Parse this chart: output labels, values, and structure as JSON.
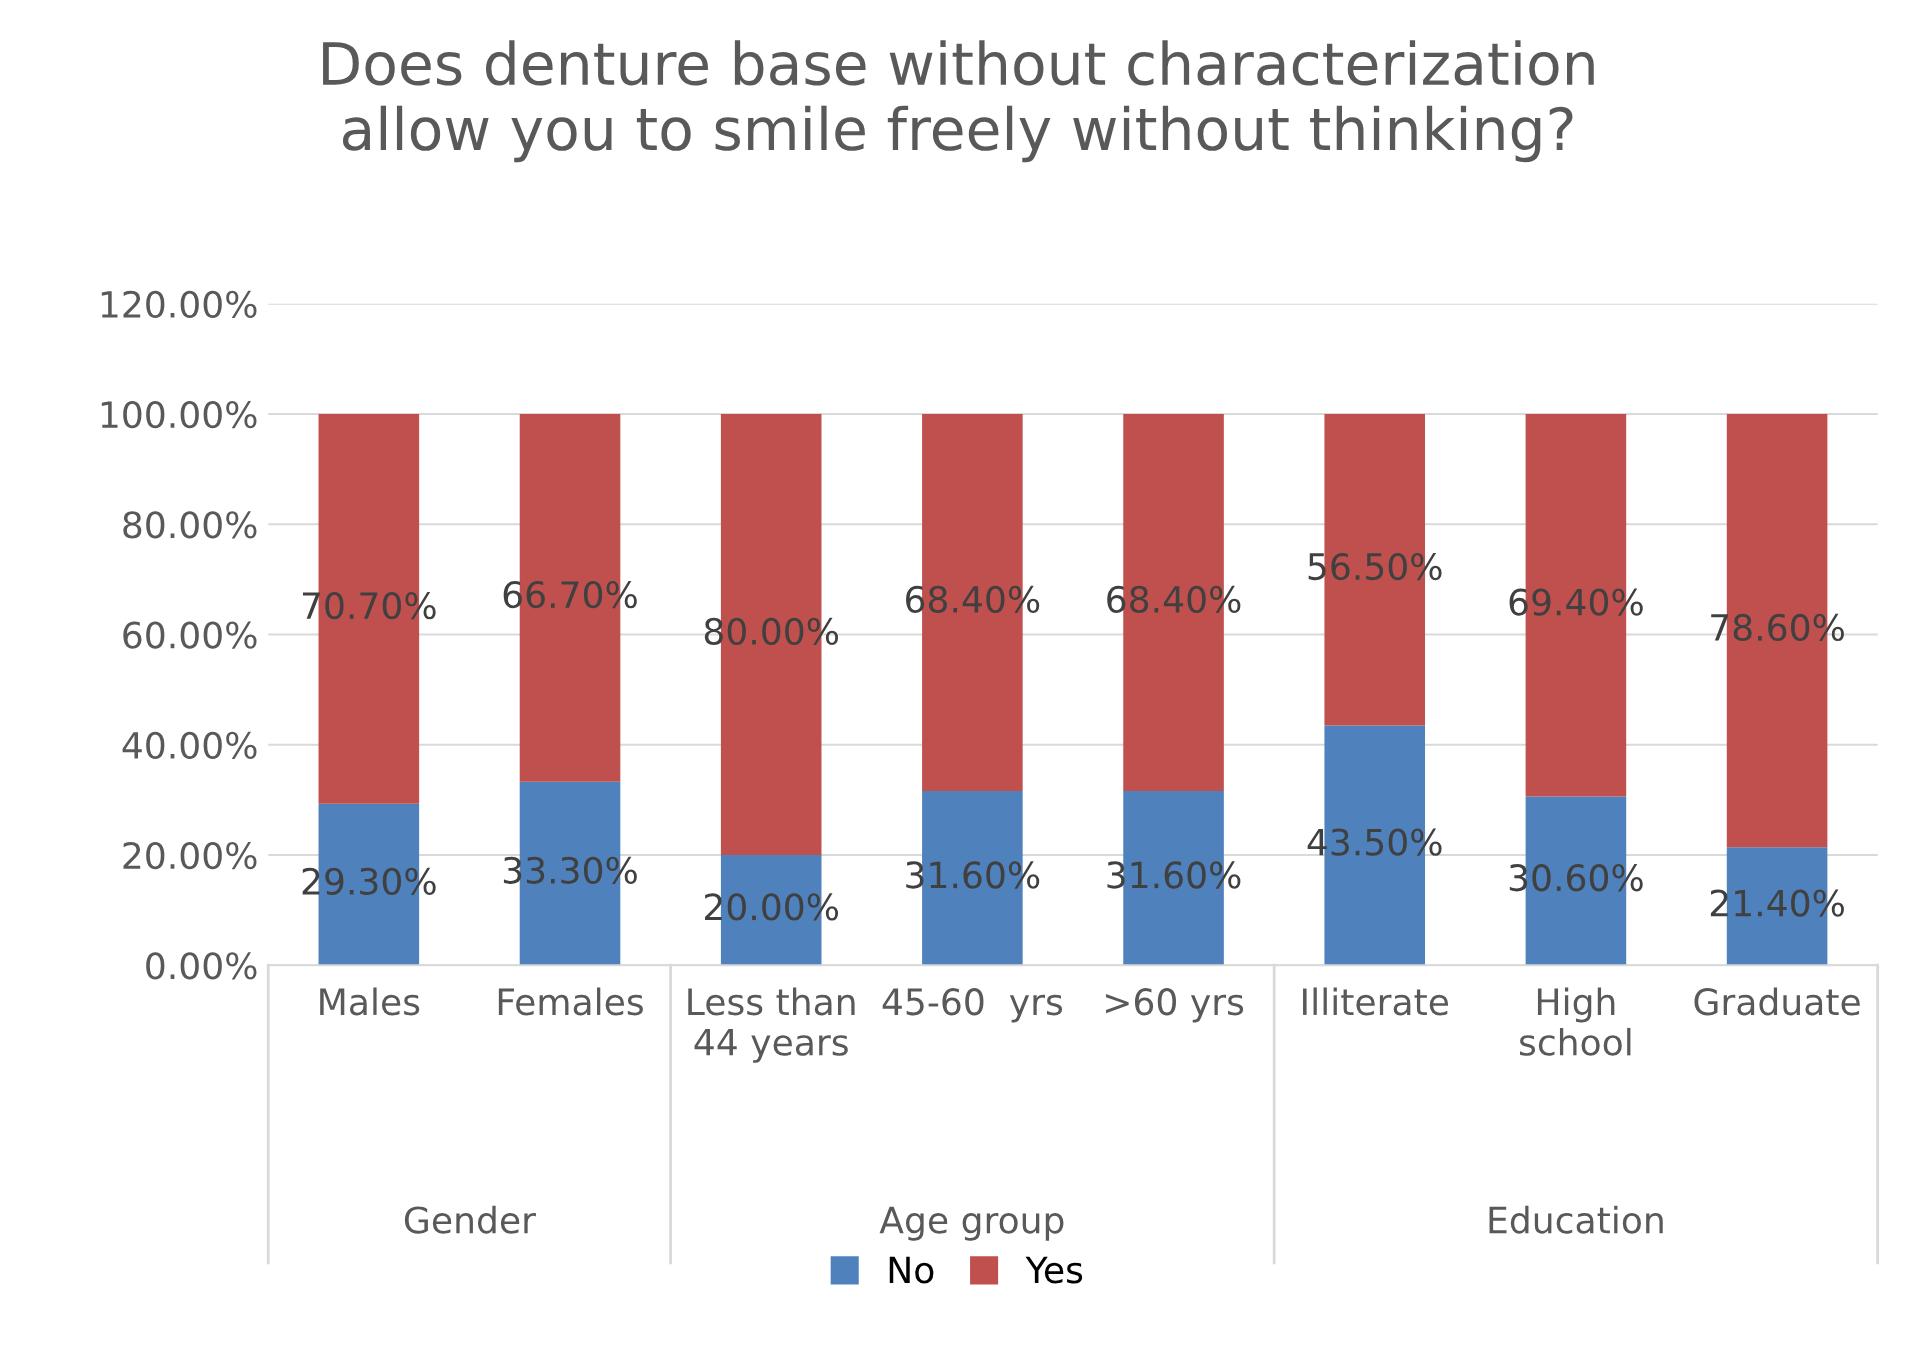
{
  "chart_data": {
    "type": "bar",
    "stacked": true,
    "title": "Does denture base without characterization\nallow you to smile freely without thinking?",
    "categories": [
      "Males",
      "Females",
      "Less than\n44 years",
      "45-60  yrs",
      ">60 yrs",
      "Illiterate",
      "High\nschool",
      "Graduate"
    ],
    "series": [
      {
        "name": "No",
        "color": "#4f81bd",
        "values": [
          29.3,
          33.3,
          20.0,
          31.6,
          31.6,
          43.5,
          30.6,
          21.4
        ],
        "value_labels": [
          "29.30%",
          "33.30%",
          "20.00%",
          "31.60%",
          "31.60%",
          "43.50%",
          "30.60%",
          "21.40%"
        ]
      },
      {
        "name": "Yes",
        "color": "#c0504d",
        "values": [
          70.7,
          66.7,
          80.0,
          68.4,
          68.4,
          56.5,
          69.4,
          78.6
        ],
        "value_labels": [
          "70.70%",
          "66.70%",
          "80.00%",
          "68.40%",
          "68.40%",
          "56.50%",
          "69.40%",
          "78.60%"
        ]
      }
    ],
    "annotations": [
      "Gender",
      "Age group",
      "Education"
    ],
    "ylim": [
      0,
      120
    ],
    "yticks": [
      {
        "value": 0,
        "label": "0.00%"
      },
      {
        "value": 20,
        "label": "20.00%"
      },
      {
        "value": 40,
        "label": "40.00%"
      },
      {
        "value": 60,
        "label": "60.00%"
      },
      {
        "value": 80,
        "label": "80.00%"
      },
      {
        "value": 100,
        "label": "100.00%"
      },
      {
        "value": 120,
        "label": "120.00%"
      }
    ],
    "grid": "y",
    "legend": "bottom"
  }
}
